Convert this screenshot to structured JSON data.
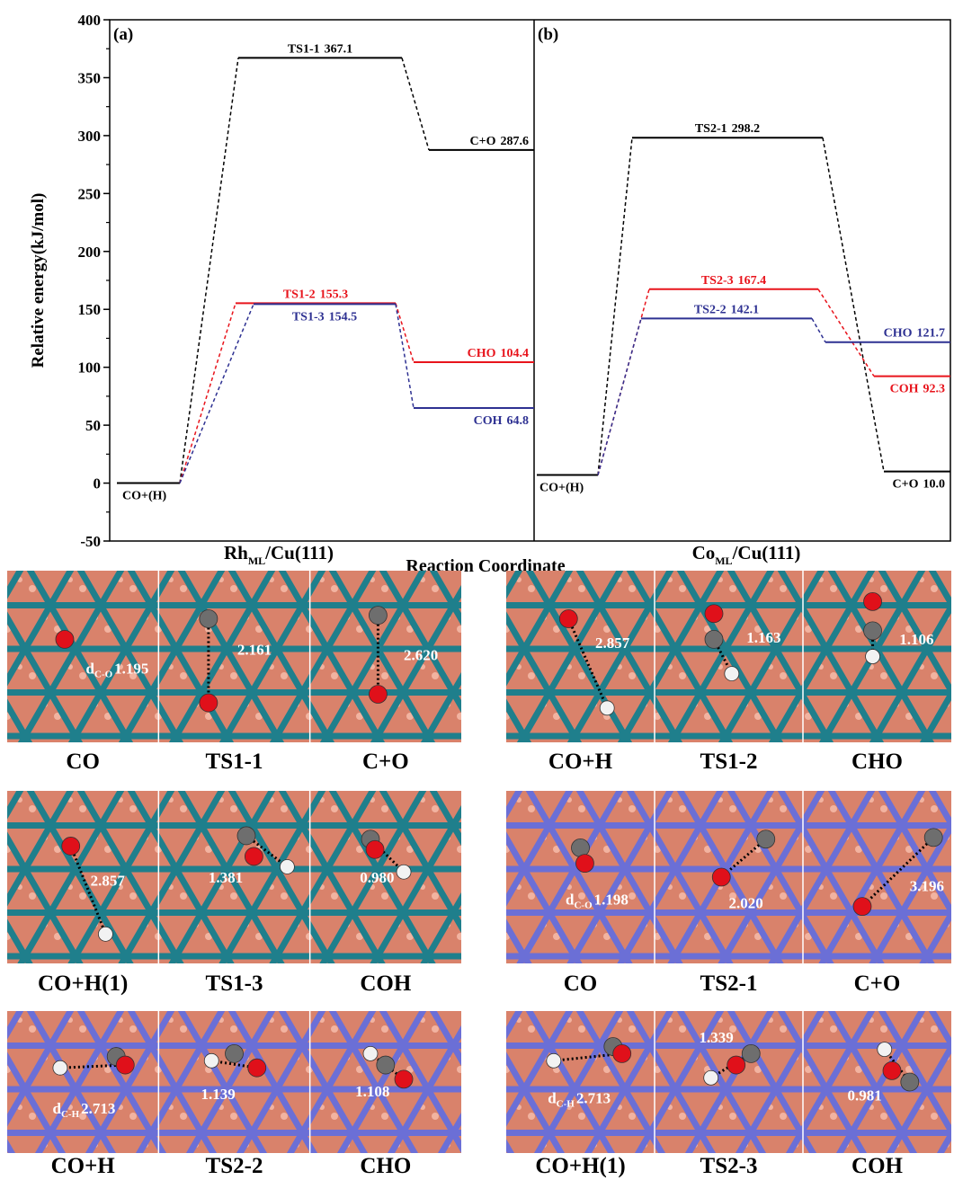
{
  "chart_data": {
    "type": "energy-profile",
    "ylabel": "Relative energy(kJ/mol)",
    "xlabel": "Reaction Coordinate",
    "ylim": [
      -50,
      400
    ],
    "yticks": [
      -50,
      0,
      50,
      100,
      150,
      200,
      250,
      300,
      350,
      400
    ],
    "panels": [
      {
        "label": "(a)",
        "name": [
          "Rh",
          "ML",
          "/Cu(111)"
        ],
        "initial": {
          "name": "CO+(H)",
          "value": 0,
          "color": "#000000"
        },
        "pathways": [
          {
            "color": "#000000",
            "states": [
              {
                "name": "TS1-1",
                "value": 367.1
              },
              {
                "name": "C+O",
                "value": 287.6
              }
            ]
          },
          {
            "color": "#e8141c",
            "states": [
              {
                "name": "TS1-2",
                "value": 155.3
              },
              {
                "name": "CHO",
                "value": 104.4
              }
            ]
          },
          {
            "color": "#2e3192",
            "states": [
              {
                "name": "TS1-3",
                "value": 154.5
              },
              {
                "name": "COH",
                "value": 64.8
              }
            ]
          }
        ]
      },
      {
        "label": "(b)",
        "name": [
          "Co",
          "ML",
          "/Cu(111)"
        ],
        "initial": {
          "name": "CO+(H)",
          "value": 7,
          "color": "#000000"
        },
        "pathways": [
          {
            "color": "#000000",
            "states": [
              {
                "name": "TS2-1",
                "value": 298.2
              },
              {
                "name": "C+O",
                "value": 10,
                "value_label": "10.0"
              }
            ]
          },
          {
            "color": "#e8141c",
            "states": [
              {
                "name": "TS2-3",
                "value": 167.4
              },
              {
                "name": "COH",
                "value": 92.3
              }
            ]
          },
          {
            "color": "#2e3192",
            "states": [
              {
                "name": "TS2-2",
                "value": 142.1
              },
              {
                "name": "CHO",
                "value": 121.7
              }
            ]
          }
        ]
      }
    ]
  },
  "structures": [
    {
      "color": "#1f7f8c",
      "panels": [
        {
          "caption": "CO",
          "annotation": {
            "symbol": "d",
            "sub": "C-O",
            "value": "1.195"
          }
        },
        {
          "caption": "TS1-1",
          "annotation": {
            "value": "2.161"
          }
        },
        {
          "caption": "C+O",
          "annotation": {
            "value": "2.620"
          }
        }
      ]
    },
    {
      "color": "#1f7f8c",
      "panels": [
        {
          "caption": "CO+H",
          "annotation": {
            "value": "2.857"
          }
        },
        {
          "caption": "TS1-2",
          "annotation": {
            "value": "1.163"
          }
        },
        {
          "caption": "CHO",
          "annotation": {
            "value": "1.106"
          }
        }
      ]
    },
    {
      "color": "#1f7f8c",
      "panels": [
        {
          "caption": "CO+H(1)",
          "annotation": {
            "value": "2.857"
          }
        },
        {
          "caption": "TS1-3",
          "annotation": {
            "value": "1.381"
          }
        },
        {
          "caption": "COH",
          "annotation": {
            "value": "0.980"
          }
        }
      ]
    },
    {
      "color": "#6b6fd6",
      "panels": [
        {
          "caption": "CO",
          "annotation": {
            "symbol": "d",
            "sub": "C-O",
            "value": "1.198"
          }
        },
        {
          "caption": "TS2-1",
          "annotation": {
            "value": "2.020"
          }
        },
        {
          "caption": "C+O",
          "annotation": {
            "value": "3.196"
          }
        }
      ]
    },
    {
      "color": "#6b6fd6",
      "panels": [
        {
          "caption": "CO+H",
          "annotation": {
            "symbol": "d",
            "sub": "C-H",
            "value": "2.713"
          }
        },
        {
          "caption": "TS2-2",
          "annotation": {
            "value": "1.139"
          }
        },
        {
          "caption": "CHO",
          "annotation": {
            "value": "1.108"
          }
        }
      ]
    },
    {
      "color": "#6b6fd6",
      "panels": [
        {
          "caption": "CO+H(1)",
          "annotation": {
            "symbol": "d",
            "sub": "C-H",
            "value": "2.713"
          }
        },
        {
          "caption": "TS2-3",
          "annotation": {
            "value": "1.339"
          }
        },
        {
          "caption": "COH",
          "annotation": {
            "value": "0.981"
          }
        }
      ]
    }
  ]
}
